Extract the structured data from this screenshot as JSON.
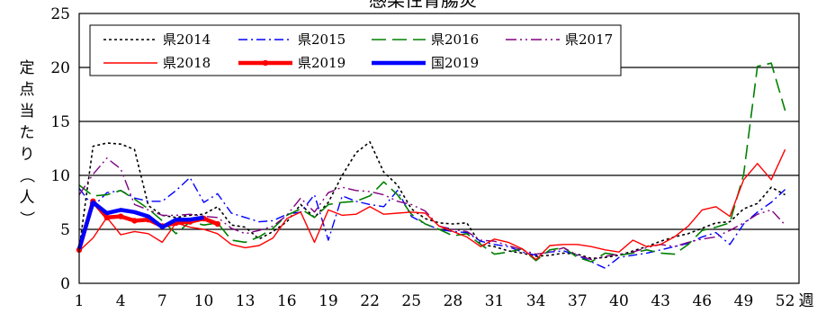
{
  "chart_data": {
    "type": "line",
    "title": "感染性胃腸炎",
    "ylabel": "定点当たり（人）",
    "xlabel_unit": "週",
    "ylim": [
      0,
      25
    ],
    "yticks": [
      0,
      5,
      10,
      15,
      20,
      25
    ],
    "xlim": [
      1,
      53
    ],
    "xticks": [
      1,
      4,
      7,
      10,
      13,
      16,
      19,
      22,
      25,
      28,
      31,
      34,
      37,
      40,
      43,
      46,
      49,
      52
    ],
    "grid": "horizontal",
    "legend": "top-left",
    "series": [
      {
        "name": "県2014",
        "color": "#000000",
        "style": "dotted",
        "x": [
          1,
          2,
          3,
          4,
          5,
          6,
          7,
          8,
          9,
          10,
          11,
          12,
          13,
          14,
          15,
          16,
          17,
          18,
          19,
          20,
          21,
          22,
          23,
          24,
          25,
          26,
          27,
          28,
          29,
          30,
          31,
          32,
          33,
          34,
          35,
          36,
          37,
          38,
          39,
          40,
          41,
          42,
          43,
          44,
          45,
          46,
          47,
          48,
          49,
          50,
          51,
          52
        ],
        "values": [
          3.2,
          12.7,
          13.0,
          12.9,
          12.4,
          7.2,
          6.3,
          6.1,
          6.3,
          6.4,
          7.1,
          5.4,
          5.2,
          4.1,
          4.8,
          5.7,
          7.3,
          6.1,
          7.5,
          10.0,
          12.1,
          13.1,
          10.3,
          9.1,
          6.9,
          6.0,
          5.6,
          5.5,
          5.6,
          3.6,
          3.4,
          3.0,
          2.8,
          2.5,
          2.6,
          2.8,
          2.7,
          2.3,
          2.4,
          2.6,
          3.0,
          3.4,
          3.9,
          4.3,
          4.6,
          5.1,
          5.6,
          5.7,
          6.9,
          7.4,
          8.9,
          8.2
        ]
      },
      {
        "name": "県2015",
        "color": "#0000ff",
        "style": "dashdot",
        "x": [
          1,
          2,
          3,
          4,
          5,
          6,
          7,
          8,
          9,
          10,
          11,
          12,
          13,
          14,
          15,
          16,
          17,
          18,
          19,
          20,
          21,
          22,
          23,
          24,
          25,
          26,
          27,
          28,
          29,
          30,
          31,
          32,
          33,
          34,
          35,
          36,
          37,
          38,
          39,
          40,
          41,
          42,
          43,
          44,
          45,
          46,
          47,
          48,
          49,
          50,
          51,
          52
        ],
        "values": [
          8.8,
          7.1,
          8.4,
          8.6,
          7.9,
          7.6,
          7.6,
          8.6,
          9.8,
          7.5,
          8.3,
          6.5,
          6.1,
          5.7,
          5.8,
          6.4,
          6.6,
          8.2,
          4.0,
          8.1,
          7.6,
          7.3,
          7.1,
          8.6,
          6.2,
          5.5,
          5.0,
          4.8,
          4.7,
          3.9,
          3.6,
          3.4,
          2.9,
          2.6,
          2.9,
          3.0,
          2.6,
          2.0,
          1.4,
          2.4,
          2.6,
          2.8,
          3.1,
          3.4,
          3.7,
          4.3,
          4.7,
          3.6,
          5.5,
          6.6,
          7.5,
          8.7
        ]
      },
      {
        "name": "県2016",
        "color": "#008000",
        "style": "longdash",
        "x": [
          1,
          2,
          3,
          4,
          5,
          6,
          7,
          8,
          9,
          10,
          11,
          12,
          13,
          14,
          15,
          16,
          17,
          18,
          19,
          20,
          21,
          22,
          23,
          24,
          25,
          26,
          27,
          28,
          29,
          30,
          31,
          32,
          33,
          34,
          35,
          36,
          37,
          38,
          39,
          40,
          41,
          42,
          43,
          44,
          45,
          46,
          47,
          48,
          49,
          50,
          51,
          52
        ],
        "values": [
          9.1,
          8.1,
          8.2,
          8.6,
          7.8,
          6.9,
          5.8,
          4.6,
          5.7,
          5.4,
          5.6,
          4.0,
          3.8,
          4.3,
          5.1,
          6.3,
          6.9,
          6.1,
          7.3,
          7.5,
          7.6,
          8.1,
          9.4,
          8.2,
          6.4,
          5.5,
          5.0,
          4.4,
          4.6,
          3.6,
          2.7,
          2.9,
          3.2,
          2.1,
          3.1,
          3.3,
          2.4,
          2.0,
          2.8,
          2.6,
          2.8,
          3.1,
          2.8,
          2.7,
          3.6,
          4.9,
          5.2,
          5.6,
          10.1,
          20.1,
          20.4,
          16.0
        ]
      },
      {
        "name": "県2017",
        "color": "#800080",
        "style": "dashdotdot",
        "x": [
          1,
          2,
          3,
          4,
          5,
          6,
          7,
          8,
          9,
          10,
          11,
          12,
          13,
          14,
          15,
          16,
          17,
          18,
          19,
          20,
          21,
          22,
          23,
          24,
          25,
          26,
          27,
          28,
          29,
          30,
          31,
          32,
          33,
          34,
          35,
          36,
          37,
          38,
          39,
          40,
          41,
          42,
          43,
          44,
          45,
          46,
          47,
          48,
          49,
          50,
          51,
          52
        ],
        "values": [
          8.2,
          10.1,
          11.6,
          10.6,
          7.3,
          6.8,
          6.3,
          6.3,
          6.4,
          6.2,
          6.1,
          5.1,
          4.6,
          4.9,
          5.3,
          6.3,
          7.9,
          6.6,
          8.4,
          8.9,
          8.6,
          8.5,
          8.2,
          7.6,
          7.3,
          6.7,
          5.3,
          5.0,
          4.8,
          4.0,
          3.9,
          3.5,
          3.1,
          2.7,
          2.9,
          3.3,
          2.6,
          2.2,
          2.5,
          2.7,
          2.9,
          3.3,
          3.6,
          3.4,
          3.8,
          4.1,
          4.3,
          4.9,
          5.6,
          6.4,
          6.8,
          5.4
        ]
      },
      {
        "name": "県2018",
        "color": "#ff0000",
        "style": "solid",
        "x": [
          1,
          2,
          3,
          4,
          5,
          6,
          7,
          8,
          9,
          10,
          11,
          12,
          13,
          14,
          15,
          16,
          17,
          18,
          19,
          20,
          21,
          22,
          23,
          24,
          25,
          26,
          27,
          28,
          29,
          30,
          31,
          32,
          33,
          34,
          35,
          36,
          37,
          38,
          39,
          40,
          41,
          42,
          43,
          44,
          45,
          46,
          47,
          48,
          49,
          50,
          51,
          52
        ],
        "values": [
          3.0,
          4.2,
          6.1,
          4.5,
          4.8,
          4.6,
          3.8,
          5.6,
          5.2,
          5.0,
          4.6,
          3.6,
          3.3,
          3.5,
          4.2,
          6.0,
          6.6,
          3.8,
          6.8,
          6.3,
          6.4,
          7.1,
          6.4,
          6.5,
          6.6,
          6.5,
          5.3,
          4.8,
          4.3,
          3.4,
          4.1,
          3.8,
          3.2,
          2.2,
          3.5,
          3.6,
          3.6,
          3.4,
          3.1,
          2.9,
          4.0,
          3.4,
          3.6,
          4.3,
          5.3,
          6.8,
          7.1,
          6.2,
          9.6,
          11.1,
          9.6,
          12.4
        ]
      },
      {
        "name": "県2019",
        "color": "#ff0000",
        "style": "thick-marker",
        "x": [
          1,
          2,
          3,
          4,
          5,
          6,
          7,
          8,
          9,
          10,
          11
        ],
        "values": [
          3.1,
          7.6,
          6.1,
          6.2,
          5.8,
          5.9,
          5.3,
          5.6,
          5.7,
          6.0,
          5.5
        ]
      },
      {
        "name": "国2019",
        "color": "#0000ff",
        "style": "thick",
        "x": [
          1,
          2,
          3,
          4,
          5,
          6,
          7,
          8,
          9,
          10
        ],
        "values": [
          3.2,
          7.5,
          6.5,
          6.8,
          6.6,
          6.2,
          5.2,
          5.9,
          5.9,
          6.1
        ]
      }
    ]
  }
}
